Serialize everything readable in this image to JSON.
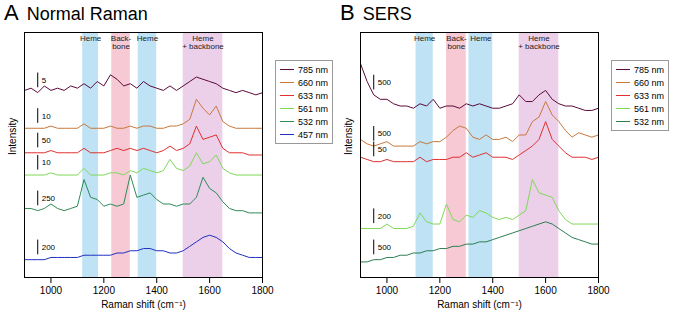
{
  "chart_data": [
    {
      "type": "line",
      "panel": "A",
      "title": "Normal Raman",
      "x_label": "Raman shift (cm⁻¹)",
      "y_label": "Intensity",
      "xlim": [
        900,
        1800
      ],
      "xticks": [
        1000,
        1200,
        1400,
        1600,
        1800
      ],
      "ylim": [
        0,
        110
      ],
      "tick_labels": "x",
      "grid": false,
      "legend": "right",
      "bands": [
        {
          "label": "Heme",
          "x0": 1120,
          "x1": 1180,
          "color": "#bfe3f5"
        },
        {
          "label": "Back-\nbone",
          "x0": 1230,
          "x1": 1300,
          "color": "#f6c9d4"
        },
        {
          "label": "Heme",
          "x0": 1330,
          "x1": 1400,
          "color": "#bfe3f5"
        },
        {
          "label": "Heme\n+ backbone",
          "x0": 1500,
          "x1": 1650,
          "color": "#ecd0ea"
        }
      ],
      "x": [
        900,
        925,
        950,
        975,
        1000,
        1025,
        1050,
        1075,
        1100,
        1125,
        1150,
        1175,
        1200,
        1225,
        1250,
        1275,
        1300,
        1325,
        1350,
        1375,
        1400,
        1425,
        1450,
        1475,
        1500,
        1525,
        1550,
        1575,
        1600,
        1625,
        1650,
        1675,
        1700,
        1725,
        1750,
        1775,
        1800
      ],
      "series": [
        {
          "name": "785 nm",
          "color": "#5c0a3a",
          "scale_bar": 5,
          "values": [
            84,
            85,
            83,
            86,
            84,
            85,
            84,
            86,
            85,
            87,
            85,
            88,
            86,
            91,
            89,
            86,
            87,
            85,
            88,
            86,
            85,
            84,
            86,
            84,
            86,
            88,
            90,
            89,
            88,
            87,
            85,
            84,
            83,
            84,
            83,
            82,
            83
          ]
        },
        {
          "name": "660 nm",
          "color": "#c8783c",
          "scale_bar": 10,
          "values": [
            67,
            67,
            67,
            67,
            68,
            67,
            67,
            67,
            67,
            69,
            67,
            67,
            67,
            68,
            67,
            67,
            68,
            67,
            68,
            68,
            67,
            67,
            68,
            68,
            69,
            71,
            80,
            76,
            73,
            77,
            70,
            68,
            67,
            67,
            67,
            67,
            67
          ]
        },
        {
          "name": "633 nm",
          "color": "#e03030",
          "scale_bar": 50,
          "values": [
            56,
            56,
            56,
            56,
            57,
            56,
            56,
            56,
            56,
            58,
            56,
            56,
            56,
            57,
            58,
            57,
            58,
            57,
            58,
            57,
            56,
            57,
            59,
            57,
            58,
            60,
            68,
            62,
            63,
            64,
            58,
            56,
            56,
            56,
            55,
            55,
            55
          ]
        },
        {
          "name": "561 nm",
          "color": "#7ed957",
          "scale_bar": 10,
          "values": [
            46,
            46,
            46,
            46,
            47,
            46,
            46,
            46,
            46,
            49,
            46,
            46,
            46,
            47,
            47,
            46,
            48,
            47,
            49,
            48,
            47,
            48,
            53,
            49,
            48,
            50,
            56,
            51,
            52,
            55,
            49,
            47,
            46,
            46,
            46,
            46,
            46
          ]
        },
        {
          "name": "532 nm",
          "color": "#2e8b57",
          "scale_bar": 250,
          "values": [
            31,
            31,
            30,
            31,
            33,
            31,
            30,
            31,
            32,
            44,
            36,
            35,
            32,
            33,
            32,
            33,
            46,
            36,
            37,
            38,
            35,
            33,
            33,
            32,
            33,
            33,
            36,
            45,
            40,
            38,
            34,
            31,
            30,
            30,
            29,
            29,
            29
          ]
        },
        {
          "name": "457 nm",
          "color": "#2030c0",
          "scale_bar": 200,
          "values": [
            8,
            8,
            8,
            8,
            9,
            9,
            9,
            9,
            9,
            10,
            10,
            10,
            10,
            10,
            11,
            11,
            12,
            12,
            13,
            13,
            12,
            12,
            11,
            11,
            12,
            14,
            16,
            18,
            19,
            18,
            16,
            13,
            11,
            10,
            9,
            9,
            9
          ]
        }
      ]
    },
    {
      "type": "line",
      "panel": "B",
      "title": "SERS",
      "x_label": "Raman shift (cm⁻¹)",
      "y_label": "Intensity",
      "xlim": [
        900,
        1800
      ],
      "xticks": [
        1000,
        1200,
        1400,
        1600,
        1800
      ],
      "ylim": [
        0,
        110
      ],
      "tick_labels": "x",
      "grid": false,
      "legend": "right",
      "bands": [
        {
          "label": "Heme",
          "x0": 1110,
          "x1": 1175,
          "color": "#bfe3f5"
        },
        {
          "label": "Back-\nbone",
          "x0": 1225,
          "x1": 1300,
          "color": "#f6c9d4"
        },
        {
          "label": "Heme",
          "x0": 1310,
          "x1": 1400,
          "color": "#bfe3f5"
        },
        {
          "label": "Heme\n+ backbone",
          "x0": 1500,
          "x1": 1650,
          "color": "#ecd0ea"
        }
      ],
      "x": [
        900,
        925,
        950,
        975,
        1000,
        1025,
        1050,
        1075,
        1100,
        1125,
        1150,
        1175,
        1200,
        1225,
        1250,
        1275,
        1300,
        1325,
        1350,
        1375,
        1400,
        1425,
        1450,
        1475,
        1500,
        1525,
        1550,
        1575,
        1600,
        1625,
        1650,
        1675,
        1700,
        1725,
        1750,
        1775,
        1800
      ],
      "series": [
        {
          "name": "785 nm",
          "color": "#5c0a3a",
          "scale_bar": 500,
          "values": [
            96,
            88,
            82,
            80,
            80,
            78,
            77,
            77,
            76,
            78,
            77,
            80,
            76,
            77,
            77,
            76,
            78,
            77,
            78,
            77,
            76,
            76,
            77,
            78,
            82,
            79,
            79,
            82,
            84,
            80,
            78,
            77,
            77,
            76,
            75,
            75,
            76
          ]
        },
        {
          "name": "660 nm",
          "color": "#c8783c",
          "scale_bar": 500,
          "values": [
            62,
            60,
            59,
            60,
            61,
            59,
            59,
            59,
            59,
            61,
            60,
            61,
            61,
            63,
            66,
            68,
            67,
            63,
            62,
            64,
            62,
            62,
            63,
            61,
            64,
            64,
            70,
            72,
            79,
            73,
            70,
            66,
            63,
            65,
            64,
            63,
            64
          ]
        },
        {
          "name": "633 nm",
          "color": "#e03030",
          "scale_bar": 50,
          "values": [
            54,
            53,
            52,
            52,
            53,
            52,
            52,
            52,
            52,
            54,
            52,
            53,
            53,
            53,
            54,
            54,
            56,
            54,
            55,
            56,
            54,
            54,
            54,
            53,
            55,
            57,
            59,
            62,
            70,
            62,
            59,
            56,
            54,
            54,
            54,
            53,
            54
          ]
        },
        {
          "name": "561 nm",
          "color": "#7ed957",
          "scale_bar": 200,
          "values": [
            22,
            22,
            22,
            22,
            24,
            22,
            22,
            22,
            23,
            29,
            25,
            24,
            24,
            33,
            26,
            25,
            28,
            27,
            30,
            29,
            27,
            26,
            27,
            26,
            28,
            30,
            44,
            38,
            37,
            36,
            30,
            26,
            24,
            24,
            24,
            24,
            24
          ]
        },
        {
          "name": "532 nm",
          "color": "#2e7d4f",
          "scale_bar": 500,
          "values": [
            7,
            7,
            8,
            8,
            9,
            9,
            10,
            10,
            11,
            11,
            12,
            12,
            13,
            13,
            14,
            14,
            15,
            15,
            16,
            16,
            17,
            18,
            19,
            20,
            21,
            22,
            23,
            24,
            25,
            24,
            22,
            20,
            18,
            17,
            16,
            15,
            15
          ]
        }
      ]
    }
  ]
}
